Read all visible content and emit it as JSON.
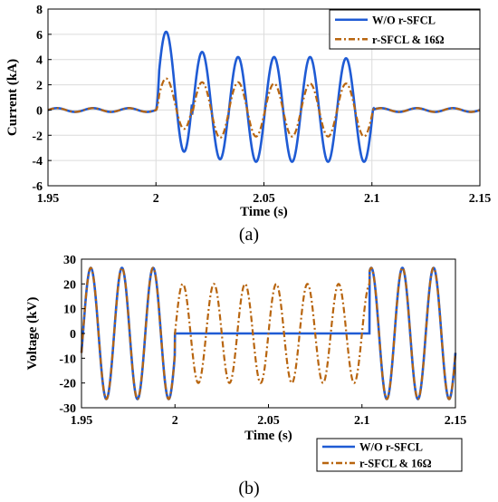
{
  "panel_labels": [
    "(a)",
    "(b)"
  ],
  "chart_data": [
    {
      "type": "line",
      "xlabel": "Time (s)",
      "ylabel": "Current (kA)",
      "xlim": [
        1.95,
        2.15
      ],
      "ylim": [
        -6,
        8
      ],
      "xticks": [
        "1.95",
        "2",
        "2.05",
        "2.1",
        "2.15"
      ],
      "yticks": [
        "-6",
        "-4",
        "-2",
        "0",
        "2",
        "4",
        "6",
        "8"
      ],
      "grid": true,
      "legend_position": "top-right",
      "fault_window": [
        2.0,
        2.1
      ],
      "frequency_hz": 60,
      "series": [
        {
          "name": "W/O r-SFCL",
          "color": "#1f5bd4",
          "style": "solid",
          "prefault_amplitude": 0.15,
          "peaks_max": [
            6.2,
            4.6,
            4.2,
            4.2,
            4.2,
            4.1
          ],
          "peaks_min": [
            -3.3,
            -3.9,
            -4.1,
            -4.1,
            -4.1,
            -4.1
          ]
        },
        {
          "name": "r-SFCL & 16Ω",
          "color": "#b8650f",
          "style": "dashdot",
          "prefault_amplitude": 0.15,
          "peaks_max": [
            2.5,
            2.2,
            2.2,
            2.1,
            2.1,
            2.1
          ],
          "peaks_min": [
            -1.5,
            -2.2,
            -2.1,
            -2.1,
            -2.1,
            -2.1
          ]
        }
      ]
    },
    {
      "type": "line",
      "xlabel": "Time (s)",
      "ylabel": "Voltage (kV)",
      "xlim": [
        1.95,
        2.15
      ],
      "ylim": [
        -30,
        30
      ],
      "xticks": [
        "1.95",
        "2",
        "2.05",
        "2.1",
        "2.15"
      ],
      "yticks": [
        "-30",
        "-20",
        "-10",
        "0",
        "10",
        "20",
        "30"
      ],
      "grid": false,
      "legend_position": "below-right",
      "fault_window": [
        2.0,
        2.104
      ],
      "frequency_hz": 60,
      "series": [
        {
          "name": "W/O r-SFCL",
          "color": "#1f5bd4",
          "style": "solid",
          "normal_amplitude": 26.5,
          "fault_value": 0
        },
        {
          "name": "r-SFCL & 16Ω",
          "color": "#b8650f",
          "style": "dashdot",
          "normal_amplitude": 26.5,
          "fault_amplitude": 20
        }
      ]
    }
  ]
}
